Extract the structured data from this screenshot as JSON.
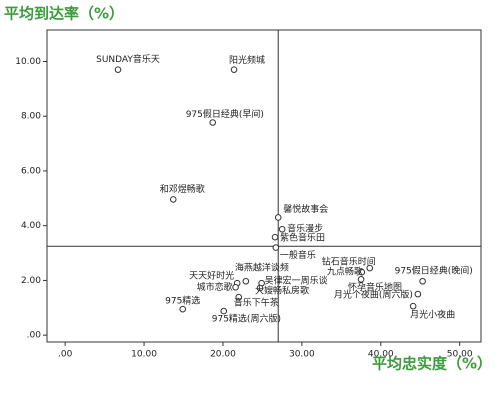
{
  "chart_data": {
    "type": "scatter",
    "y_label": "平均到达率（%）",
    "x_label": "平均忠实度（%）",
    "labels": [
      "SUNDAY音乐天",
      "阳光频城",
      "975假日经典(早间)",
      "和邓煜畅歌",
      "馨悦故事会",
      "音乐漫步",
      "紫色音乐田",
      "一般音乐",
      "钻石音乐时间",
      "九点畅歌",
      "975假日经典(晚间)",
      "怀孕音乐地图",
      "月光个夜曲(周六版)",
      "月光小夜曲",
      "海燕越洋谈频",
      "天天好时光",
      "吴律宏一周乐谈",
      "城市恋歌",
      "大嫂畅私房歌",
      "音乐下午茶",
      "975精选",
      "975精选(周六版)"
    ],
    "x": [
      6.7,
      21.4,
      18.7,
      13.7,
      27.0,
      27.5,
      26.6,
      26.7,
      38.6,
      37.6,
      45.3,
      37.5,
      44.7,
      44.1,
      22.9,
      21.8,
      24.9,
      21.6,
      24.7,
      22.0,
      14.9,
      20.1
    ],
    "values": [
      9.7,
      9.7,
      7.77,
      4.96,
      4.3,
      3.87,
      3.58,
      3.2,
      2.45,
      2.3,
      1.97,
      2.04,
      1.5,
      1.06,
      1.97,
      1.9,
      1.9,
      1.75,
      1.72,
      1.39,
      0.95,
      0.88
    ],
    "color": "#333333",
    "xlim": [
      -2.3,
      52.7
    ],
    "ylim": [
      -0.25,
      11.15
    ],
    "xticks": [
      {
        "value": 0,
        "label": ".00"
      },
      {
        "value": 10,
        "label": "10.00"
      },
      {
        "value": 20,
        "label": "20.00"
      },
      {
        "value": 30,
        "label": "30.00"
      },
      {
        "value": 40,
        "label": "40.00"
      },
      {
        "value": 50,
        "label": "50.00"
      }
    ],
    "yticks": [
      {
        "value": 0,
        "label": ".00"
      },
      {
        "value": 2,
        "label": "2.00"
      },
      {
        "value": 4,
        "label": "4.00"
      },
      {
        "value": 6,
        "label": "6.00"
      },
      {
        "value": 8,
        "label": "8.00"
      },
      {
        "value": 10,
        "label": "10.00"
      }
    ],
    "reference_lines": {
      "x": 27.0,
      "y": 3.25
    }
  }
}
